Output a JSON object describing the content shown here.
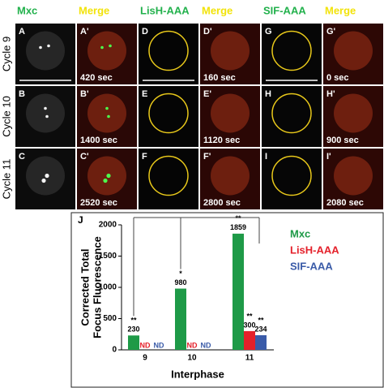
{
  "figure": {
    "columns": [
      {
        "text": "Mxc",
        "color": "#22b14c"
      },
      {
        "text": "Merge",
        "color": "#f2e30a"
      },
      {
        "text": "LisH-AAA",
        "color": "#22b14c"
      },
      {
        "text": "Merge",
        "color": "#f2e30a"
      },
      {
        "text": "SIF-AAA",
        "color": "#22b14c"
      },
      {
        "text": "Merge",
        "color": "#f2e30a"
      }
    ],
    "rows": [
      "Cycle 9",
      "Cycle 10",
      "Cycle 11"
    ],
    "panels": [
      [
        {
          "label": "A"
        },
        {
          "label": "A'",
          "time": "420 sec"
        },
        {
          "label": "D"
        },
        {
          "label": "D'",
          "time": "160 sec"
        },
        {
          "label": "G"
        },
        {
          "label": "G'",
          "time": "0 sec"
        }
      ],
      [
        {
          "label": "B"
        },
        {
          "label": "B'",
          "time": "1400 sec"
        },
        {
          "label": "E"
        },
        {
          "label": "E'",
          "time": "1120 sec"
        },
        {
          "label": "H"
        },
        {
          "label": "H'",
          "time": "900 sec"
        }
      ],
      [
        {
          "label": "C"
        },
        {
          "label": "C'",
          "time": "2520 sec"
        },
        {
          "label": "F"
        },
        {
          "label": "F'",
          "time": "2800 sec"
        },
        {
          "label": "I"
        },
        {
          "label": "I'",
          "time": "2080 sec"
        }
      ]
    ]
  },
  "chart_data": {
    "type": "bar",
    "panel_label": "J",
    "x_label": "Interphase",
    "y_label": [
      "Corrected Total",
      "Focus Fluorescence"
    ],
    "categories": [
      "9",
      "10",
      "11"
    ],
    "series": [
      {
        "name": "Mxc",
        "color": "#1e9a47",
        "values": [
          230,
          980,
          1859
        ],
        "significance": [
          "**",
          "*",
          "**"
        ]
      },
      {
        "name": "LisH-AAA",
        "color": "#e4202a",
        "values": [
          null,
          null,
          300
        ],
        "value_labels": [
          "ND",
          "ND",
          "300"
        ],
        "significance": [
          null,
          null,
          "**"
        ]
      },
      {
        "name": "SIF-AAA",
        "color": "#3a5ba8",
        "values": [
          null,
          null,
          234
        ],
        "value_labels": [
          "ND",
          "ND",
          "234"
        ],
        "significance": [
          null,
          null,
          "**"
        ]
      }
    ],
    "ylim": [
      0,
      2000
    ],
    "yticks": [
      0,
      500,
      1000,
      1500,
      2000
    ],
    "legend": "upper right"
  }
}
